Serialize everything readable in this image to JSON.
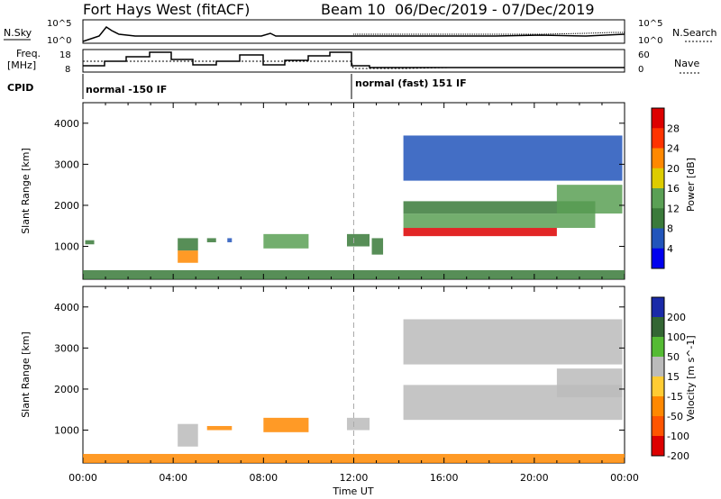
{
  "header": {
    "station": "Fort Hays West (fitACF)",
    "beam": "Beam 10",
    "dates": "06/Dec/2019 - 07/Dec/2019"
  },
  "strip": {
    "nsky_label": "N.Sky",
    "nsky_top": "10^5",
    "nsky_bottom": "10^0",
    "nsearch_label": "N.Search",
    "nsearch_top": "10^5",
    "nsearch_bottom": "10^0",
    "freq_label": "Freq.",
    "freq_unit": "[MHz]",
    "freq_top": "18",
    "freq_bottom": "8",
    "nave_label": "Nave",
    "nave_top": "60",
    "nave_bottom": "0",
    "cpid_label": "CPID",
    "cpid_mode1": "normal -150 IF",
    "cpid_mode2": "normal (fast) 151 IF"
  },
  "colors": {
    "power": [
      "#0000ee",
      "#2255bb",
      "#3a7a3a",
      "#5aa055",
      "#ddcc00",
      "#ff8800",
      "#ff3300",
      "#dd0000"
    ],
    "velocity": [
      "#1a2aa8",
      "#336633",
      "#55bb33",
      "#bbbbbb",
      "#ffcc33",
      "#ff8800",
      "#ff5500",
      "#dd0000"
    ]
  },
  "chart_data": [
    {
      "type": "heatmap",
      "panel": "power",
      "ylabel": "Slant Range [km]",
      "yticks": [
        1000,
        2000,
        3000,
        4000
      ],
      "ylim": [
        200,
        4500
      ],
      "xlim": [
        0,
        24
      ],
      "colorbar_label": "Power [dB]",
      "colorbar_ticks": [
        "28",
        "24",
        "20",
        "16",
        "12",
        "8",
        "4"
      ],
      "colorbar_range": [
        0,
        32
      ],
      "regions": [
        {
          "t0": 0.0,
          "t1": 24.0,
          "r0": 200,
          "r1": 420,
          "value": 10
        },
        {
          "t0": 0.1,
          "t1": 0.5,
          "r0": 1050,
          "r1": 1150,
          "value": 8
        },
        {
          "t0": 4.2,
          "t1": 5.1,
          "r0": 600,
          "r1": 900,
          "value": 22
        },
        {
          "t0": 4.2,
          "t1": 5.1,
          "r0": 900,
          "r1": 1200,
          "value": 10
        },
        {
          "t0": 5.5,
          "t1": 5.9,
          "r0": 1100,
          "r1": 1200,
          "value": 8
        },
        {
          "t0": 6.4,
          "t1": 6.6,
          "r0": 1100,
          "r1": 1200,
          "value": 6
        },
        {
          "t0": 8.0,
          "t1": 10.0,
          "r0": 950,
          "r1": 1300,
          "value": 14
        },
        {
          "t0": 11.7,
          "t1": 12.7,
          "r0": 1000,
          "r1": 1300,
          "value": 8
        },
        {
          "t0": 12.8,
          "t1": 13.3,
          "r0": 800,
          "r1": 1200,
          "value": 8
        },
        {
          "t0": 14.2,
          "t1": 21.0,
          "r0": 1250,
          "r1": 1450,
          "value": 28
        },
        {
          "t0": 14.2,
          "t1": 22.7,
          "r0": 1450,
          "r1": 1800,
          "value": 14
        },
        {
          "t0": 14.2,
          "t1": 22.7,
          "r0": 1800,
          "r1": 2100,
          "value": 8
        },
        {
          "t0": 21.0,
          "t1": 23.9,
          "r0": 1800,
          "r1": 2500,
          "value": 14
        },
        {
          "t0": 14.2,
          "t1": 23.9,
          "r0": 2600,
          "r1": 3700,
          "value": 6
        }
      ]
    },
    {
      "type": "heatmap",
      "panel": "velocity",
      "ylabel": "Slant Range [km]",
      "yticks": [
        1000,
        2000,
        3000,
        4000
      ],
      "ylim": [
        200,
        4500
      ],
      "xlim": [
        0,
        24
      ],
      "xlabel": "Time UT",
      "xticks": [
        "00:00",
        "04:00",
        "08:00",
        "12:00",
        "16:00",
        "20:00",
        "00:00"
      ],
      "xtick_hours": [
        0,
        4,
        8,
        12,
        16,
        20,
        24
      ],
      "colorbar_label": "Velocity [m s^-1]",
      "colorbar_ticks": [
        "200",
        "100",
        "50",
        "15",
        "-15",
        "-50",
        "-100",
        "-200"
      ],
      "colorbar_range": [
        -250,
        250
      ],
      "regions": [
        {
          "t0": 0.0,
          "t1": 24.0,
          "r0": 200,
          "r1": 420,
          "value": -40
        },
        {
          "t0": 4.2,
          "t1": 5.1,
          "r0": 600,
          "r1": 1150,
          "value": 0
        },
        {
          "t0": 5.5,
          "t1": 6.6,
          "r0": 1000,
          "r1": 1100,
          "value": -40
        },
        {
          "t0": 8.0,
          "t1": 10.0,
          "r0": 950,
          "r1": 1300,
          "value": -40
        },
        {
          "t0": 11.7,
          "t1": 12.7,
          "r0": 1000,
          "r1": 1300,
          "value": 0
        },
        {
          "t0": 14.2,
          "t1": 23.9,
          "r0": 1250,
          "r1": 2100,
          "value": 0
        },
        {
          "t0": 21.0,
          "t1": 23.9,
          "r0": 1800,
          "r1": 2500,
          "value": 0
        },
        {
          "t0": 14.2,
          "t1": 23.9,
          "r0": 2600,
          "r1": 3700,
          "value": 0
        }
      ]
    }
  ]
}
